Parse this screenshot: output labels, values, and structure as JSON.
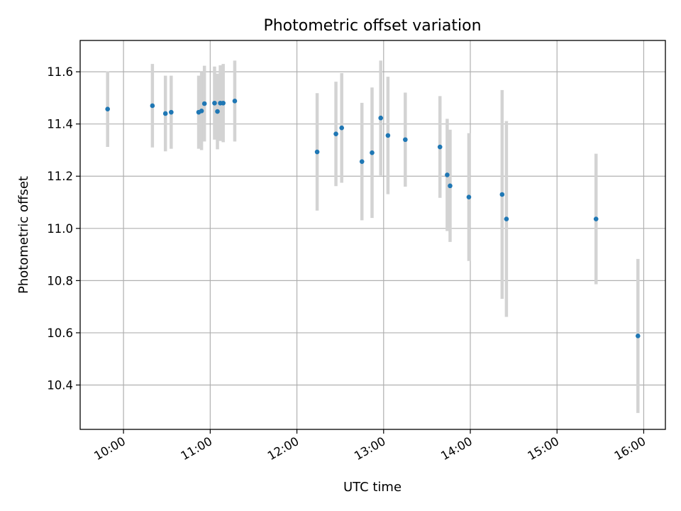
{
  "chart_data": {
    "type": "scatter",
    "title": "Photometric offset variation",
    "xlabel": "UTC time",
    "ylabel": "Photometric offset",
    "x_ticks": [
      "10:00",
      "11:00",
      "12:00",
      "13:00",
      "14:00",
      "15:00",
      "16:00"
    ],
    "y_ticks": [
      "10.4",
      "10.6",
      "10.8",
      "11.0",
      "11.2",
      "11.4",
      "11.6"
    ],
    "xlim": [
      "09:30",
      "16:15"
    ],
    "ylim": [
      10.23,
      11.72
    ],
    "grid": true,
    "colors": {
      "point": "#1f77b4",
      "errorbar": "#d3d3d3"
    },
    "points": [
      {
        "x": "09:49",
        "y": 11.457,
        "yerr": 0.145
      },
      {
        "x": "10:20",
        "y": 11.47,
        "yerr": 0.16
      },
      {
        "x": "10:29",
        "y": 11.44,
        "yerr": 0.145
      },
      {
        "x": "10:33",
        "y": 11.445,
        "yerr": 0.14
      },
      {
        "x": "10:52",
        "y": 11.445,
        "yerr": 0.14
      },
      {
        "x": "10:54",
        "y": 11.45,
        "yerr": 0.15
      },
      {
        "x": "10:56",
        "y": 11.478,
        "yerr": 0.145
      },
      {
        "x": "11:03",
        "y": 11.48,
        "yerr": 0.14
      },
      {
        "x": "11:05",
        "y": 11.448,
        "yerr": 0.145
      },
      {
        "x": "11:07",
        "y": 11.48,
        "yerr": 0.145
      },
      {
        "x": "11:09",
        "y": 11.48,
        "yerr": 0.15
      },
      {
        "x": "11:17",
        "y": 11.488,
        "yerr": 0.155
      },
      {
        "x": "12:14",
        "y": 11.293,
        "yerr": 0.225
      },
      {
        "x": "12:27",
        "y": 11.362,
        "yerr": 0.2
      },
      {
        "x": "12:31",
        "y": 11.385,
        "yerr": 0.21
      },
      {
        "x": "12:45",
        "y": 11.256,
        "yerr": 0.225
      },
      {
        "x": "12:52",
        "y": 11.29,
        "yerr": 0.25
      },
      {
        "x": "12:58",
        "y": 11.423,
        "yerr": 0.22
      },
      {
        "x": "13:03",
        "y": 11.356,
        "yerr": 0.225
      },
      {
        "x": "13:15",
        "y": 11.34,
        "yerr": 0.18
      },
      {
        "x": "13:39",
        "y": 11.312,
        "yerr": 0.195
      },
      {
        "x": "13:44",
        "y": 11.205,
        "yerr": 0.215
      },
      {
        "x": "13:46",
        "y": 11.163,
        "yerr": 0.215
      },
      {
        "x": "13:59",
        "y": 11.12,
        "yerr": 0.245
      },
      {
        "x": "14:22",
        "y": 11.13,
        "yerr": 0.4
      },
      {
        "x": "14:25",
        "y": 11.036,
        "yerr": 0.375
      },
      {
        "x": "15:27",
        "y": 11.036,
        "yerr": 0.25
      },
      {
        "x": "15:56",
        "y": 10.588,
        "yerr": 0.295
      }
    ]
  }
}
